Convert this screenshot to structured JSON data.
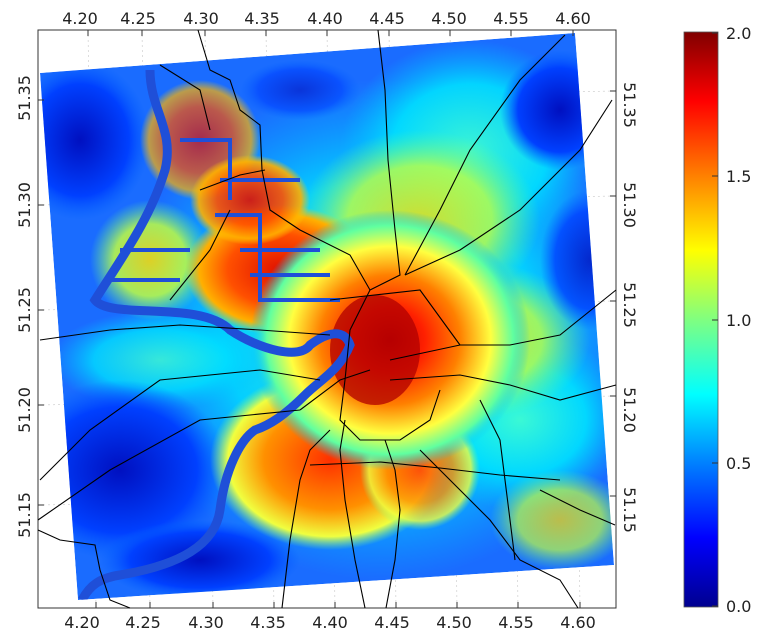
{
  "map": {
    "x_ticks_top": [
      "4.20",
      "4.25",
      "4.30",
      "4.35",
      "4.40",
      "4.45",
      "4.50",
      "4.55",
      "4.60"
    ],
    "x_ticks_bottom": [
      "4.20",
      "4.25",
      "4.30",
      "4.35",
      "4.40",
      "4.45",
      "4.50",
      "4.55",
      "4.60"
    ],
    "y_ticks_left": [
      "51.15",
      "51.20",
      "51.25",
      "51.30",
      "51.35"
    ],
    "y_ticks_right": [
      "51.15",
      "51.20",
      "51.25",
      "51.30",
      "51.35"
    ],
    "colorbar": {
      "ticks": [
        "0.0",
        "0.5",
        "1.0",
        "1.5",
        "2.0"
      ],
      "min": 0.0,
      "max": 2.0,
      "colormap": "jet",
      "colors": [
        "#00008f",
        "#0000ff",
        "#0080ff",
        "#00ffff",
        "#80ff80",
        "#ffff00",
        "#ff8000",
        "#ff0000",
        "#800000"
      ]
    },
    "river_color": "#1f4fd8",
    "road_color": "#000000"
  }
}
